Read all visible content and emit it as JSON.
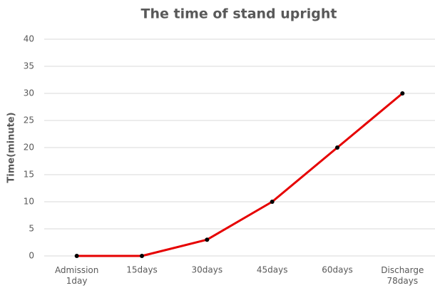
{
  "chart_data": {
    "type": "line",
    "title": "The time of stand upright",
    "y_label": "Time(minute)",
    "categories": [
      "Admission\n1day",
      "15days",
      "30days",
      "45days",
      "60days",
      "Discharge\n78days"
    ],
    "series": [
      {
        "name": "Time(minute)",
        "color": "#e60000",
        "values": [
          0,
          0,
          3,
          10,
          20,
          30
        ]
      }
    ],
    "ylim": [
      0,
      40
    ],
    "yticks": [
      0,
      5,
      10,
      15,
      20,
      25,
      30,
      35,
      40
    ],
    "grid": true,
    "marker_color": "#000000"
  }
}
